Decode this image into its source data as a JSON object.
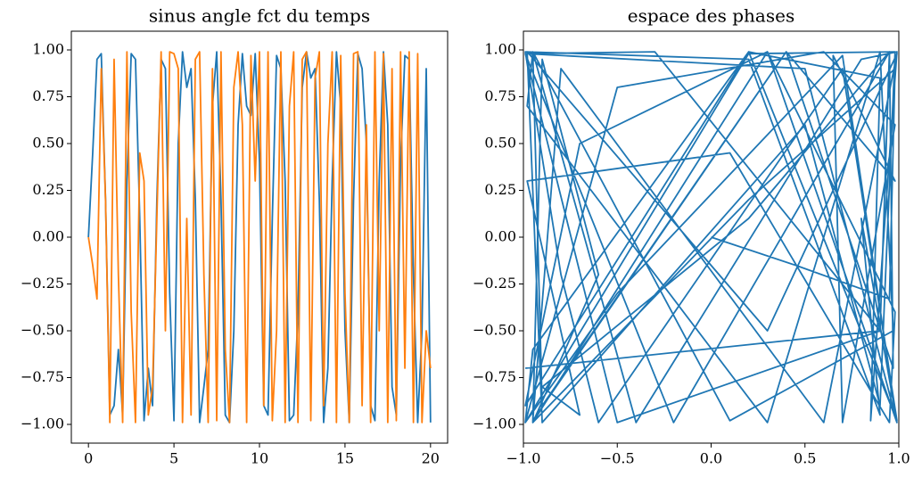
{
  "chart_data": [
    {
      "type": "line",
      "title": "sinus angle fct du temps",
      "x": [
        0,
        0.25,
        0.5,
        0.75,
        1,
        1.25,
        1.5,
        1.75,
        2,
        2.25,
        2.5,
        2.75,
        3,
        3.25,
        3.5,
        3.75,
        4,
        4.25,
        4.5,
        4.75,
        5,
        5.25,
        5.5,
        5.75,
        6,
        6.25,
        6.5,
        6.75,
        7,
        7.25,
        7.5,
        7.75,
        8,
        8.25,
        8.5,
        8.75,
        9,
        9.25,
        9.5,
        9.75,
        10,
        10.25,
        10.5,
        10.75,
        11,
        11.25,
        11.5,
        11.75,
        12,
        12.25,
        12.5,
        12.75,
        13,
        13.25,
        13.5,
        13.75,
        14,
        14.25,
        14.5,
        14.75,
        15,
        15.25,
        15.5,
        15.75,
        16,
        16.25,
        16.5,
        16.75,
        17,
        17.25,
        17.5,
        17.75,
        18,
        18.25,
        18.5,
        18.75,
        19,
        19.25,
        19.5,
        19.75,
        20
      ],
      "series": [
        {
          "color": "#1f77b4",
          "values": [
            0,
            0.45,
            0.95,
            0.98,
            0.2,
            -0.95,
            -0.9,
            -0.6,
            -0.95,
            0.3,
            0.98,
            0.95,
            0.1,
            -0.98,
            -0.7,
            -0.9,
            0.2,
            0.95,
            0.9,
            -0.3,
            -0.98,
            0.5,
            0.99,
            0.8,
            0.9,
            0.2,
            -0.99,
            -0.8,
            -0.6,
            0.7,
            0.99,
            0.2,
            -0.95,
            -0.99,
            -0.5,
            0.6,
            0.98,
            0.7,
            0.65,
            0.98,
            0.4,
            -0.9,
            -0.95,
            0.1,
            0.97,
            0.9,
            0.3,
            -0.98,
            -0.95,
            -0.4,
            0.8,
            0.99,
            0.85,
            0.9,
            0.2,
            -0.99,
            -0.7,
            0.3,
            0.99,
            0.7,
            -0.5,
            -0.99,
            0.2,
            0.98,
            0.9,
            0.5,
            -0.9,
            -0.98,
            0.3,
            0.99,
            0.6,
            -0.8,
            -0.95,
            0.4,
            0.97,
            0.95,
            -0.2,
            -0.99,
            -0.5,
            0.9,
            -0.99
          ]
        },
        {
          "color": "#ff7f0e",
          "values": [
            0,
            -0.15,
            -0.33,
            0.9,
            0.2,
            -0.99,
            0.95,
            -0.2,
            -0.99,
            0.99,
            -0.4,
            -0.99,
            0.45,
            0.3,
            -0.95,
            -0.8,
            0.1,
            0.99,
            -0.5,
            0.99,
            0.98,
            0.9,
            -0.99,
            0.1,
            -0.95,
            0.95,
            0.99,
            -0.2,
            -0.99,
            0.9,
            -0.98,
            0.99,
            -0.6,
            -0.99,
            0.8,
            0.99,
            0.6,
            -0.99,
            0.97,
            0.3,
            0.99,
            -0.9,
            0.99,
            -0.98,
            -0.5,
            0.99,
            -0.99,
            0.7,
            0.99,
            -0.99,
            0.95,
            0.99,
            -0.98,
            0.85,
            0.99,
            -0.9,
            0.5,
            0.99,
            -0.99,
            0.97,
            -0.3,
            -0.99,
            0.98,
            0.99,
            -0.9,
            0.6,
            -0.99,
            0.99,
            -0.5,
            0.98,
            -0.99,
            0.9,
            -0.98,
            0.99,
            -0.7,
            0.99,
            -0.99,
            0.98,
            -0.99,
            -0.5,
            -0.7
          ]
        }
      ],
      "xlim": [
        -1,
        21
      ],
      "xticks": [
        0,
        5,
        10,
        15,
        20
      ],
      "ylim": [
        -1.1,
        1.1
      ],
      "yticks": [
        {
          "value": -1,
          "label": "−1.00"
        },
        {
          "value": -0.75,
          "label": "−0.75"
        },
        {
          "value": -0.5,
          "label": "−0.50"
        },
        {
          "value": -0.25,
          "label": "−0.25"
        },
        {
          "value": 0,
          "label": "0.00"
        },
        {
          "value": 0.25,
          "label": "0.25"
        },
        {
          "value": 0.5,
          "label": "0.50"
        },
        {
          "value": 0.75,
          "label": "0.75"
        },
        {
          "value": 1,
          "label": "1.00"
        }
      ]
    },
    {
      "type": "line",
      "title": "espace des phases",
      "x": [
        0,
        0.45,
        0.95,
        0.98,
        0.2,
        -0.95,
        -0.9,
        -0.6,
        -0.95,
        0.3,
        0.98,
        0.95,
        0.1,
        -0.98,
        -0.7,
        -0.9,
        0.2,
        0.95,
        0.9,
        -0.3,
        -0.98,
        0.5,
        0.99,
        0.8,
        0.9,
        0.2,
        -0.99,
        -0.8,
        -0.6,
        0.7,
        0.99,
        0.2,
        -0.95,
        -0.99,
        -0.5,
        0.6,
        0.98,
        0.7,
        0.65,
        0.98,
        0.4,
        -0.9,
        -0.95,
        0.1,
        0.97,
        0.9,
        0.3,
        -0.98,
        -0.95,
        -0.4,
        0.8,
        0.99,
        0.85,
        0.9,
        0.2,
        -0.99,
        -0.7,
        0.3,
        0.99,
        0.7,
        -0.5,
        -0.99,
        0.2,
        0.98,
        0.9,
        0.5,
        -0.9,
        -0.98,
        0.3,
        0.99,
        0.6,
        -0.8,
        -0.95,
        0.4,
        0.97,
        0.95,
        -0.2,
        -0.99,
        -0.5,
        0.9,
        -0.99
      ],
      "series": [
        {
          "color": "#1f77b4",
          "values": [
            0,
            -0.15,
            -0.33,
            0.9,
            0.2,
            -0.99,
            0.95,
            -0.2,
            -0.99,
            0.99,
            -0.4,
            -0.99,
            0.45,
            0.3,
            -0.95,
            -0.8,
            0.1,
            0.99,
            -0.5,
            0.99,
            0.98,
            0.9,
            -0.99,
            0.1,
            -0.95,
            0.95,
            0.99,
            -0.2,
            -0.99,
            0.9,
            -0.98,
            0.99,
            -0.6,
            -0.99,
            0.8,
            0.99,
            0.6,
            -0.99,
            0.97,
            0.3,
            0.99,
            -0.9,
            0.99,
            -0.98,
            -0.5,
            0.99,
            -0.99,
            0.7,
            0.99,
            -0.99,
            0.95,
            0.99,
            -0.98,
            0.85,
            0.99,
            -0.9,
            0.5,
            0.99,
            -0.99,
            0.97,
            -0.3,
            -0.99,
            0.98,
            0.99,
            -0.9,
            0.6,
            -0.99,
            0.99,
            -0.5,
            0.98,
            -0.99,
            0.9,
            -0.98,
            0.99,
            -0.7,
            0.99,
            -0.99,
            0.98,
            -0.99,
            -0.5,
            -0.7
          ]
        }
      ],
      "xlim": [
        -1,
        1
      ],
      "xticks": [
        {
          "value": -1,
          "label": "−1.0"
        },
        {
          "value": -0.5,
          "label": "−0.5"
        },
        {
          "value": 0,
          "label": "0.0"
        },
        {
          "value": 0.5,
          "label": "0.5"
        },
        {
          "value": 1,
          "label": "1.0"
        }
      ],
      "ylim": [
        -1.1,
        1.1
      ],
      "yticks": [
        {
          "value": -1,
          "label": "−1.00"
        },
        {
          "value": -0.75,
          "label": "−0.75"
        },
        {
          "value": -0.5,
          "label": "−0.50"
        },
        {
          "value": -0.25,
          "label": "−0.25"
        },
        {
          "value": 0,
          "label": "0.00"
        },
        {
          "value": 0.25,
          "label": "0.25"
        },
        {
          "value": 0.5,
          "label": "0.50"
        },
        {
          "value": 0.75,
          "label": "0.75"
        },
        {
          "value": 1,
          "label": "1.00"
        }
      ]
    }
  ]
}
